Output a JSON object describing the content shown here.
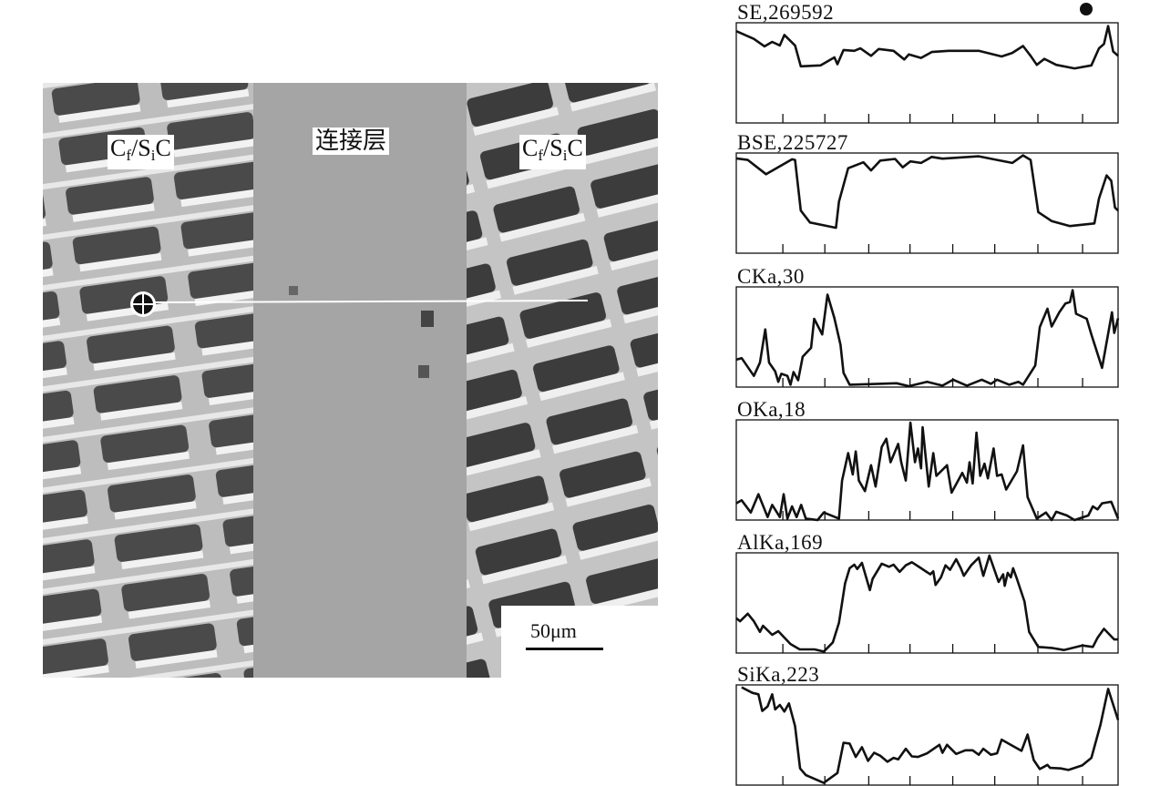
{
  "figure": {
    "labels": {
      "left_region_main": "C",
      "left_region_sub1": "f",
      "left_region_mid": "/S",
      "left_region_sub2": "i",
      "left_region_end": "C",
      "center_region": "连接层",
      "right_region_main": "C",
      "right_region_sub1": "f",
      "right_region_mid": "/S",
      "right_region_sub2": "i",
      "right_region_end": "C"
    },
    "scale_bar": "50μm"
  },
  "chart_data": [
    {
      "type": "line",
      "title": "SE,269592",
      "x_ticks": 8,
      "grid": false,
      "values": [
        [
          0,
          93.3
        ],
        [
          4.6,
          85.5
        ],
        [
          7.4,
          77.9
        ],
        [
          9.4,
          82.4
        ],
        [
          11.4,
          78.8
        ],
        [
          12.6,
          89.4
        ],
        [
          15.4,
          78.8
        ],
        [
          16.9,
          57.6
        ],
        [
          22.1,
          58.5
        ],
        [
          25.7,
          66.7
        ],
        [
          26.5,
          59.7
        ],
        [
          28.1,
          74.2
        ],
        [
          30.9,
          73.3
        ],
        [
          32.5,
          75.8
        ],
        [
          35.3,
          68.2
        ],
        [
          37.3,
          75.2
        ],
        [
          41.2,
          73.3
        ],
        [
          44.0,
          64.5
        ],
        [
          45.2,
          69.7
        ],
        [
          48.4,
          66.1
        ],
        [
          51.2,
          72.1
        ],
        [
          55.6,
          73.3
        ],
        [
          63.5,
          73.3
        ],
        [
          69.5,
          67.6
        ],
        [
          72.3,
          71.2
        ],
        [
          75.1,
          78.2
        ],
        [
          77.1,
          68.2
        ],
        [
          78.7,
          59.1
        ],
        [
          80.7,
          65.2
        ],
        [
          83.8,
          59.1
        ],
        [
          88.6,
          55.5
        ],
        [
          93.0,
          58.5
        ],
        [
          95.0,
          75.8
        ],
        [
          96.3,
          80.3
        ],
        [
          97.4,
          98.5
        ],
        [
          98.7,
          72.7
        ],
        [
          100,
          68.2
        ]
      ]
    },
    {
      "type": "line",
      "title": "BSE,225727",
      "x_ticks": 8,
      "grid": false,
      "values": [
        [
          0,
          96.4
        ],
        [
          3.0,
          94.8
        ],
        [
          7.8,
          80.3
        ],
        [
          14.6,
          95.5
        ],
        [
          15.4,
          94.8
        ],
        [
          16.9,
          43.3
        ],
        [
          19.3,
          31.2
        ],
        [
          26.1,
          25.8
        ],
        [
          26.9,
          52.4
        ],
        [
          29.3,
          86.4
        ],
        [
          33.3,
          92.4
        ],
        [
          35.3,
          84.2
        ],
        [
          37.7,
          94.2
        ],
        [
          41.6,
          95.8
        ],
        [
          43.6,
          87.3
        ],
        [
          45.6,
          93.3
        ],
        [
          48.4,
          91.8
        ],
        [
          51.2,
          97.9
        ],
        [
          54.0,
          96.1
        ],
        [
          63.5,
          98.5
        ],
        [
          68.3,
          94.8
        ],
        [
          72.3,
          91.8
        ],
        [
          75.1,
          99.4
        ],
        [
          77.1,
          94.8
        ],
        [
          79.1,
          41.8
        ],
        [
          82.6,
          32.7
        ],
        [
          87.4,
          27.6
        ],
        [
          93.8,
          30.3
        ],
        [
          95.0,
          55.5
        ],
        [
          97.0,
          79.1
        ],
        [
          98.2,
          73.6
        ],
        [
          99.2,
          46.4
        ],
        [
          100,
          43.3
        ]
      ]
    },
    {
      "type": "line",
      "title": "CKa,30",
      "x_ticks": 8,
      "grid": false,
      "values": [
        [
          0,
          27.9
        ],
        [
          1.4,
          29.4
        ],
        [
          4.6,
          11.4
        ],
        [
          6.2,
          24.9
        ],
        [
          7.6,
          58.6
        ],
        [
          8.6,
          24.9
        ],
        [
          10.2,
          15.9
        ],
        [
          11.0,
          5.4
        ],
        [
          11.8,
          13.5
        ],
        [
          13.4,
          11.4
        ],
        [
          14.2,
          2.4
        ],
        [
          15.0,
          15.3
        ],
        [
          16.2,
          6.9
        ],
        [
          17.4,
          30.9
        ],
        [
          19.6,
          39.9
        ],
        [
          20.4,
          69.4
        ],
        [
          22.5,
          53.5
        ],
        [
          23.9,
          94.0
        ],
        [
          25.7,
          70.0
        ],
        [
          27.3,
          42.9
        ],
        [
          28.1,
          14.4
        ],
        [
          29.7,
          2.4
        ],
        [
          42.0,
          3.9
        ],
        [
          45.2,
          0.9
        ],
        [
          50.0,
          5.4
        ],
        [
          54.0,
          1.5
        ],
        [
          56.8,
          7.5
        ],
        [
          60.4,
          1.5
        ],
        [
          64.3,
          7.5
        ],
        [
          66.7,
          3.3
        ],
        [
          68.3,
          7.5
        ],
        [
          71.5,
          2.4
        ],
        [
          73.9,
          5.4
        ],
        [
          75.1,
          2.4
        ],
        [
          78.3,
          21.9
        ],
        [
          79.5,
          61.0
        ],
        [
          81.5,
          79.6
        ],
        [
          82.6,
          61.6
        ],
        [
          84.6,
          76.0
        ],
        [
          86.2,
          85.0
        ],
        [
          87.4,
          86.5
        ],
        [
          88.1,
          98.5
        ],
        [
          89.0,
          74.5
        ],
        [
          91.8,
          69.4
        ],
        [
          93.0,
          53.5
        ],
        [
          95.8,
          19.5
        ],
        [
          98.4,
          76.0
        ],
        [
          99.0,
          55.0
        ],
        [
          100,
          70.0
        ]
      ]
    },
    {
      "type": "line",
      "title": "OKa,18",
      "x_ticks": 8,
      "grid": false,
      "values": [
        [
          0,
          17.0
        ],
        [
          1.4,
          20.1
        ],
        [
          3.8,
          7.7
        ],
        [
          5.8,
          26.3
        ],
        [
          8.2,
          3.1
        ],
        [
          9.4,
          15.5
        ],
        [
          11.4,
          3.1
        ],
        [
          12.4,
          26.3
        ],
        [
          13.4,
          1.5
        ],
        [
          14.6,
          13.9
        ],
        [
          15.8,
          3.1
        ],
        [
          17.0,
          15.5
        ],
        [
          18.2,
          1.5
        ],
        [
          21.3,
          0
        ],
        [
          22.9,
          7.7
        ],
        [
          26.9,
          1.5
        ],
        [
          27.7,
          40.2
        ],
        [
          29.3,
          68.1
        ],
        [
          30.5,
          46.4
        ],
        [
          31.3,
          69.7
        ],
        [
          32.1,
          40.2
        ],
        [
          33.7,
          29.4
        ],
        [
          35.3,
          55.7
        ],
        [
          36.5,
          34.1
        ],
        [
          38.1,
          74.3
        ],
        [
          39.3,
          82.7
        ],
        [
          40.4,
          58.8
        ],
        [
          42.4,
          77.4
        ],
        [
          43.2,
          58.8
        ],
        [
          44.4,
          40.2
        ],
        [
          45.6,
          99.1
        ],
        [
          46.8,
          58.8
        ],
        [
          47.6,
          72.8
        ],
        [
          48.4,
          52.6
        ],
        [
          48.8,
          94.4
        ],
        [
          50.4,
          34.1
        ],
        [
          51.6,
          68.1
        ],
        [
          52.4,
          44.9
        ],
        [
          55.2,
          55.7
        ],
        [
          56.4,
          27.9
        ],
        [
          59.2,
          48.0
        ],
        [
          60.4,
          38.1
        ],
        [
          61.1,
          58.8
        ],
        [
          61.9,
          37.2
        ],
        [
          62.9,
          88.9
        ],
        [
          63.9,
          44.9
        ],
        [
          65.0,
          57.3
        ],
        [
          65.9,
          42.4
        ],
        [
          67.4,
          72.8
        ],
        [
          68.3,
          44.9
        ],
        [
          69.5,
          46.4
        ],
        [
          70.7,
          31.0
        ],
        [
          73.5,
          49.5
        ],
        [
          75.1,
          75.9
        ],
        [
          76.3,
          23.2
        ],
        [
          78.7,
          1.5
        ],
        [
          81.1,
          7.7
        ],
        [
          82.6,
          0
        ],
        [
          83.8,
          8.4
        ],
        [
          86.6,
          4.6
        ],
        [
          88.6,
          0
        ],
        [
          92.2,
          4.6
        ],
        [
          93.4,
          13.9
        ],
        [
          94.6,
          10.8
        ],
        [
          95.8,
          17.0
        ],
        [
          98.2,
          18.6
        ],
        [
          100,
          1.5
        ]
      ]
    },
    {
      "type": "line",
      "title": "AlKa,169",
      "x_ticks": 8,
      "grid": false,
      "values": [
        [
          0,
          35.4
        ],
        [
          1.0,
          32.3
        ],
        [
          3.0,
          40.0
        ],
        [
          4.6,
          32.3
        ],
        [
          6.2,
          21.5
        ],
        [
          7.0,
          27.7
        ],
        [
          9.4,
          18.5
        ],
        [
          11.0,
          22.2
        ],
        [
          14.2,
          9.2
        ],
        [
          16.6,
          3.7
        ],
        [
          20.5,
          3.7
        ],
        [
          22.9,
          1.5
        ],
        [
          25.3,
          10.8
        ],
        [
          26.9,
          30.8
        ],
        [
          28.5,
          70.8
        ],
        [
          29.7,
          86.2
        ],
        [
          30.9,
          89.8
        ],
        [
          31.7,
          85.5
        ],
        [
          32.9,
          91.7
        ],
        [
          35.0,
          64.0
        ],
        [
          35.7,
          75.4
        ],
        [
          38.1,
          90.8
        ],
        [
          40.0,
          87.7
        ],
        [
          41.2,
          89.8
        ],
        [
          42.8,
          82.5
        ],
        [
          44.4,
          89.2
        ],
        [
          46.0,
          92.3
        ],
        [
          48.4,
          86.2
        ],
        [
          50.8,
          80.0
        ],
        [
          51.6,
          83.1
        ],
        [
          52.2,
          69.2
        ],
        [
          53.6,
          76.9
        ],
        [
          54.8,
          89.2
        ],
        [
          56.0,
          84.6
        ],
        [
          57.6,
          95.4
        ],
        [
          58.8,
          86.2
        ],
        [
          59.6,
          78.5
        ],
        [
          61.5,
          89.2
        ],
        [
          63.5,
          96.9
        ],
        [
          64.7,
          78.5
        ],
        [
          66.3,
          99.1
        ],
        [
          68.7,
          72.3
        ],
        [
          69.9,
          80.0
        ],
        [
          70.3,
          68.3
        ],
        [
          71.1,
          81.5
        ],
        [
          71.9,
          76.9
        ],
        [
          72.5,
          86.2
        ],
        [
          73.5,
          75.4
        ],
        [
          75.5,
          52.3
        ],
        [
          76.7,
          21.5
        ],
        [
          79.1,
          6.2
        ],
        [
          82.6,
          5.2
        ],
        [
          85.8,
          3.1
        ],
        [
          90.6,
          7.7
        ],
        [
          93.4,
          6.2
        ],
        [
          94.6,
          15.4
        ],
        [
          96.3,
          24.6
        ],
        [
          99.0,
          13.8
        ],
        [
          100,
          13.8
        ]
      ]
    },
    {
      "type": "line",
      "title": "SiKa,223",
      "x_ticks": 8,
      "grid": false,
      "values": [
        [
          1.4,
          99.4
        ],
        [
          4.2,
          93.8
        ],
        [
          5.8,
          92.3
        ],
        [
          6.8,
          75.4
        ],
        [
          8.2,
          80.0
        ],
        [
          9.4,
          92.3
        ],
        [
          10.2,
          76.9
        ],
        [
          11.4,
          81.5
        ],
        [
          12.6,
          74.8
        ],
        [
          13.8,
          83.1
        ],
        [
          15.4,
          60.0
        ],
        [
          16.7,
          16.9
        ],
        [
          18.2,
          10.2
        ],
        [
          22.9,
          2.2
        ],
        [
          26.5,
          12.3
        ],
        [
          28.1,
          43.1
        ],
        [
          29.7,
          42.2
        ],
        [
          31.3,
          28.6
        ],
        [
          32.9,
          38.5
        ],
        [
          34.5,
          24.6
        ],
        [
          36.1,
          32.9
        ],
        [
          37.7,
          29.8
        ],
        [
          39.6,
          23.7
        ],
        [
          41.2,
          27.7
        ],
        [
          42.4,
          26.2
        ],
        [
          44.4,
          36.9
        ],
        [
          46.0,
          29.2
        ],
        [
          47.6,
          28.6
        ],
        [
          50.0,
          32.3
        ],
        [
          53.2,
          40.9
        ],
        [
          54.0,
          32.9
        ],
        [
          55.2,
          40.9
        ],
        [
          57.6,
          31.7
        ],
        [
          60.0,
          35.4
        ],
        [
          61.9,
          35.4
        ],
        [
          63.5,
          30.8
        ],
        [
          64.7,
          36.9
        ],
        [
          66.7,
          30.8
        ],
        [
          68.3,
          32.3
        ],
        [
          69.5,
          46.2
        ],
        [
          72.3,
          40.0
        ],
        [
          74.7,
          34.8
        ],
        [
          76.3,
          51.4
        ],
        [
          77.9,
          25.5
        ],
        [
          79.5,
          16.3
        ],
        [
          81.5,
          20.6
        ],
        [
          82.2,
          17.5
        ],
        [
          85.0,
          16.9
        ],
        [
          87.0,
          15.4
        ],
        [
          90.6,
          20.0
        ],
        [
          93.0,
          27.7
        ],
        [
          95.4,
          61.5
        ],
        [
          97.4,
          97.8
        ],
        [
          100,
          66.2
        ]
      ]
    }
  ]
}
